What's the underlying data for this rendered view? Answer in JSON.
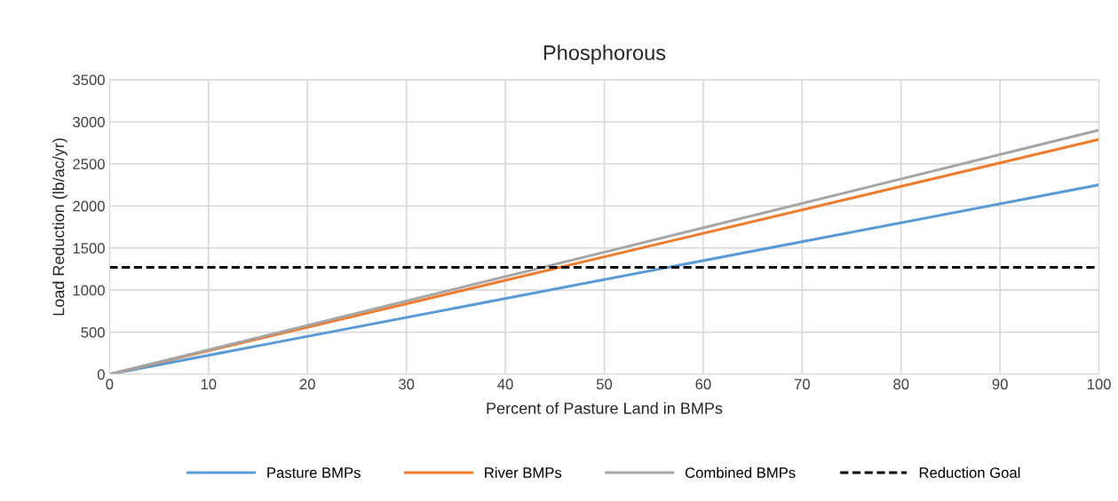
{
  "chart_data": {
    "type": "line",
    "title": "Phosphorous",
    "xlabel": "Percent of Pasture Land in BMPs",
    "ylabel": "Load Reduction (lb/ac/yr)",
    "x": [
      0,
      100
    ],
    "series": [
      {
        "name": "Pasture BMPs",
        "color": "#5b9bd5",
        "values": [
          0,
          2250
        ]
      },
      {
        "name": "River BMPs",
        "color": "#ed7d31",
        "values": [
          0,
          2790
        ]
      },
      {
        "name": "Combined BMPs",
        "color": "#a5a5a5",
        "values": [
          0,
          2900
        ]
      }
    ],
    "ref_lines": [
      {
        "axis": "y",
        "value": 1270,
        "label": "Reduction Goal",
        "color": "#000000",
        "line_style": "dashed"
      }
    ],
    "xlim": [
      0,
      100
    ],
    "xticks": [
      0,
      10,
      20,
      30,
      40,
      50,
      60,
      70,
      80,
      90,
      100
    ],
    "ylim": [
      0,
      3500
    ],
    "yticks": [
      0,
      500,
      1000,
      1500,
      2000,
      2500,
      3000,
      3500
    ],
    "grid": true,
    "legend": "bottom",
    "marker": "none",
    "line_style": "solid"
  }
}
